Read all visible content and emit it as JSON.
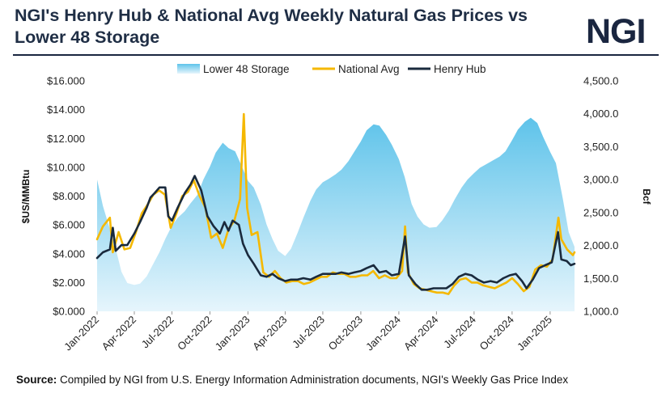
{
  "header": {
    "title": "NGI's Henry Hub & National Avg Weekly Natural Gas Prices vs Lower 48 Storage",
    "logo": "NGI"
  },
  "footer": {
    "source_label": "Source:",
    "source_text": " Compiled by NGI from U.S. Energy Information Administration documents, NGI's Weekly Gas Price Index"
  },
  "colors": {
    "storage_top": "#5ec3ea",
    "storage_bottom": "#e6f5fc",
    "national_avg": "#f5b800",
    "henry_hub": "#1a2a3d",
    "title": "#1f2e45"
  },
  "chart_data": {
    "type": "line",
    "legend": [
      "Lower 48 Storage",
      "National Avg",
      "Henry Hub"
    ],
    "legend_position": "top-center",
    "ylabel_left": "$US/MMBtu",
    "ylabel_right": "Bcf",
    "ylim_left": [
      0,
      16
    ],
    "ylim_right": [
      1000,
      4500
    ],
    "yticks_left": [
      "$0.000",
      "$2.000",
      "$4.000",
      "$6.000",
      "$8.000",
      "$10.000",
      "$12.000",
      "$14.000",
      "$16.000"
    ],
    "yticks_right": [
      "1,000.0",
      "1,500.0",
      "2,000.0",
      "2,500.0",
      "3,000.0",
      "3,500.0",
      "4,000.0",
      "4,500.0"
    ],
    "xlim": [
      "2022-01",
      "2025-03"
    ],
    "xticks": [
      "Jan-2022",
      "Apr-2022",
      "Jul-2022",
      "Oct-2022",
      "Jan-2023",
      "Apr-2023",
      "Jul-2023",
      "Oct-2023",
      "Jan-2024",
      "Apr-2024",
      "Jul-2024",
      "Oct-2024",
      "Jan-2025"
    ],
    "grid": false,
    "series": [
      {
        "name": "Lower 48 Storage",
        "type": "area",
        "axis": "right",
        "points": [
          [
            "2022-01-01",
            3000
          ],
          [
            "2022-01-15",
            2600
          ],
          [
            "2022-02-01",
            2250
          ],
          [
            "2022-02-15",
            1950
          ],
          [
            "2022-03-01",
            1600
          ],
          [
            "2022-03-15",
            1430
          ],
          [
            "2022-04-01",
            1400
          ],
          [
            "2022-04-15",
            1420
          ],
          [
            "2022-05-01",
            1530
          ],
          [
            "2022-05-15",
            1700
          ],
          [
            "2022-06-01",
            1900
          ],
          [
            "2022-06-15",
            2100
          ],
          [
            "2022-07-01",
            2300
          ],
          [
            "2022-07-15",
            2420
          ],
          [
            "2022-08-01",
            2520
          ],
          [
            "2022-08-15",
            2640
          ],
          [
            "2022-09-01",
            2770
          ],
          [
            "2022-09-15",
            3000
          ],
          [
            "2022-10-01",
            3200
          ],
          [
            "2022-10-15",
            3410
          ],
          [
            "2022-11-01",
            3560
          ],
          [
            "2022-11-15",
            3480
          ],
          [
            "2022-12-01",
            3430
          ],
          [
            "2022-12-15",
            3230
          ],
          [
            "2023-01-01",
            2980
          ],
          [
            "2023-01-15",
            2880
          ],
          [
            "2023-02-01",
            2620
          ],
          [
            "2023-02-15",
            2320
          ],
          [
            "2023-03-01",
            2100
          ],
          [
            "2023-03-15",
            1920
          ],
          [
            "2023-04-01",
            1840
          ],
          [
            "2023-04-15",
            1950
          ],
          [
            "2023-05-01",
            2190
          ],
          [
            "2023-05-15",
            2420
          ],
          [
            "2023-06-01",
            2680
          ],
          [
            "2023-06-15",
            2850
          ],
          [
            "2023-07-01",
            2960
          ],
          [
            "2023-07-15",
            3010
          ],
          [
            "2023-08-01",
            3080
          ],
          [
            "2023-08-15",
            3150
          ],
          [
            "2023-09-01",
            3280
          ],
          [
            "2023-09-15",
            3420
          ],
          [
            "2023-10-01",
            3580
          ],
          [
            "2023-10-15",
            3750
          ],
          [
            "2023-11-01",
            3840
          ],
          [
            "2023-11-15",
            3820
          ],
          [
            "2023-12-01",
            3680
          ],
          [
            "2023-12-15",
            3530
          ],
          [
            "2024-01-01",
            3310
          ],
          [
            "2024-01-15",
            3040
          ],
          [
            "2024-02-01",
            2630
          ],
          [
            "2024-02-15",
            2440
          ],
          [
            "2024-03-01",
            2320
          ],
          [
            "2024-03-15",
            2270
          ],
          [
            "2024-04-01",
            2280
          ],
          [
            "2024-04-15",
            2380
          ],
          [
            "2024-05-01",
            2530
          ],
          [
            "2024-05-15",
            2700
          ],
          [
            "2024-06-01",
            2880
          ],
          [
            "2024-06-15",
            3000
          ],
          [
            "2024-07-01",
            3100
          ],
          [
            "2024-07-15",
            3180
          ],
          [
            "2024-08-01",
            3240
          ],
          [
            "2024-08-15",
            3290
          ],
          [
            "2024-09-01",
            3350
          ],
          [
            "2024-09-15",
            3430
          ],
          [
            "2024-10-01",
            3600
          ],
          [
            "2024-10-15",
            3760
          ],
          [
            "2024-11-01",
            3880
          ],
          [
            "2024-11-15",
            3940
          ],
          [
            "2024-12-01",
            3860
          ],
          [
            "2024-12-15",
            3650
          ],
          [
            "2025-01-01",
            3420
          ],
          [
            "2025-01-15",
            3250
          ],
          [
            "2025-02-01",
            2700
          ],
          [
            "2025-02-15",
            2200
          ],
          [
            "2025-03-01",
            1980
          ]
        ]
      },
      {
        "name": "National Avg",
        "type": "line",
        "axis": "left",
        "points": [
          [
            "2022-01-01",
            5.0
          ],
          [
            "2022-01-15",
            5.9
          ],
          [
            "2022-02-01",
            6.5
          ],
          [
            "2022-02-08",
            4.1
          ],
          [
            "2022-02-22",
            5.5
          ],
          [
            "2022-03-08",
            4.3
          ],
          [
            "2022-03-22",
            4.4
          ],
          [
            "2022-04-05",
            5.5
          ],
          [
            "2022-04-19",
            6.8
          ],
          [
            "2022-05-03",
            7.4
          ],
          [
            "2022-05-17",
            8.1
          ],
          [
            "2022-05-31",
            8.4
          ],
          [
            "2022-06-14",
            8.1
          ],
          [
            "2022-06-28",
            5.8
          ],
          [
            "2022-07-12",
            6.8
          ],
          [
            "2022-07-26",
            8.0
          ],
          [
            "2022-08-09",
            8.3
          ],
          [
            "2022-08-23",
            9.1
          ],
          [
            "2022-09-06",
            8.0
          ],
          [
            "2022-09-20",
            7.2
          ],
          [
            "2022-10-04",
            5.1
          ],
          [
            "2022-10-18",
            5.4
          ],
          [
            "2022-11-01",
            4.4
          ],
          [
            "2022-11-15",
            5.7
          ],
          [
            "2022-11-29",
            6.3
          ],
          [
            "2022-12-13",
            7.8
          ],
          [
            "2022-12-22",
            13.7
          ],
          [
            "2022-12-30",
            7.2
          ],
          [
            "2023-01-10",
            5.3
          ],
          [
            "2023-01-24",
            5.5
          ],
          [
            "2023-02-07",
            2.7
          ],
          [
            "2023-02-21",
            2.4
          ],
          [
            "2023-03-07",
            2.8
          ],
          [
            "2023-03-21",
            2.3
          ],
          [
            "2023-04-04",
            2.0
          ],
          [
            "2023-04-18",
            2.1
          ],
          [
            "2023-05-02",
            2.1
          ],
          [
            "2023-05-16",
            1.9
          ],
          [
            "2023-05-30",
            2.0
          ],
          [
            "2023-06-13",
            2.2
          ],
          [
            "2023-06-27",
            2.4
          ],
          [
            "2023-07-11",
            2.4
          ],
          [
            "2023-07-25",
            2.7
          ],
          [
            "2023-08-08",
            2.6
          ],
          [
            "2023-08-22",
            2.6
          ],
          [
            "2023-09-05",
            2.4
          ],
          [
            "2023-09-19",
            2.4
          ],
          [
            "2023-10-03",
            2.5
          ],
          [
            "2023-10-17",
            2.5
          ],
          [
            "2023-10-31",
            2.8
          ],
          [
            "2023-11-14",
            2.3
          ],
          [
            "2023-11-28",
            2.5
          ],
          [
            "2023-12-12",
            2.3
          ],
          [
            "2023-12-26",
            2.3
          ],
          [
            "2024-01-09",
            2.8
          ],
          [
            "2024-01-16",
            5.9
          ],
          [
            "2024-01-23",
            2.7
          ],
          [
            "2024-02-06",
            1.9
          ],
          [
            "2024-02-20",
            1.6
          ],
          [
            "2024-03-05",
            1.5
          ],
          [
            "2024-03-19",
            1.4
          ],
          [
            "2024-04-02",
            1.3
          ],
          [
            "2024-04-16",
            1.3
          ],
          [
            "2024-04-30",
            1.2
          ],
          [
            "2024-05-14",
            1.8
          ],
          [
            "2024-05-28",
            2.2
          ],
          [
            "2024-06-11",
            2.3
          ],
          [
            "2024-06-25",
            2.0
          ],
          [
            "2024-07-09",
            2.0
          ],
          [
            "2024-07-23",
            1.8
          ],
          [
            "2024-08-06",
            1.7
          ],
          [
            "2024-08-20",
            1.6
          ],
          [
            "2024-09-03",
            1.8
          ],
          [
            "2024-09-17",
            2.0
          ],
          [
            "2024-10-01",
            2.3
          ],
          [
            "2024-10-15",
            1.9
          ],
          [
            "2024-10-29",
            1.4
          ],
          [
            "2024-11-12",
            1.7
          ],
          [
            "2024-11-26",
            2.9
          ],
          [
            "2024-12-10",
            3.2
          ],
          [
            "2024-12-24",
            3.1
          ],
          [
            "2025-01-07",
            3.6
          ],
          [
            "2025-01-21",
            6.5
          ],
          [
            "2025-01-28",
            5.0
          ],
          [
            "2025-02-11",
            4.3
          ],
          [
            "2025-02-25",
            3.9
          ],
          [
            "2025-03-01",
            4.1
          ]
        ]
      },
      {
        "name": "Henry Hub",
        "type": "line",
        "axis": "left",
        "points": [
          [
            "2022-01-01",
            3.7
          ],
          [
            "2022-01-15",
            4.1
          ],
          [
            "2022-02-01",
            4.3
          ],
          [
            "2022-02-08",
            5.8
          ],
          [
            "2022-02-15",
            4.2
          ],
          [
            "2022-03-01",
            4.6
          ],
          [
            "2022-03-15",
            4.6
          ],
          [
            "2022-04-01",
            5.4
          ],
          [
            "2022-04-15",
            6.2
          ],
          [
            "2022-05-01",
            7.2
          ],
          [
            "2022-05-10",
            7.9
          ],
          [
            "2022-05-20",
            8.2
          ],
          [
            "2022-06-01",
            8.6
          ],
          [
            "2022-06-15",
            8.6
          ],
          [
            "2022-06-22",
            6.6
          ],
          [
            "2022-07-01",
            6.3
          ],
          [
            "2022-07-15",
            7.2
          ],
          [
            "2022-08-01",
            8.2
          ],
          [
            "2022-08-15",
            8.8
          ],
          [
            "2022-08-25",
            9.4
          ],
          [
            "2022-09-10",
            8.4
          ],
          [
            "2022-09-25",
            6.6
          ],
          [
            "2022-10-10",
            5.9
          ],
          [
            "2022-10-25",
            5.4
          ],
          [
            "2022-11-05",
            6.2
          ],
          [
            "2022-11-15",
            5.6
          ],
          [
            "2022-11-25",
            6.3
          ],
          [
            "2022-12-10",
            6.0
          ],
          [
            "2022-12-20",
            4.7
          ],
          [
            "2023-01-01",
            3.9
          ],
          [
            "2023-01-15",
            3.3
          ],
          [
            "2023-02-01",
            2.5
          ],
          [
            "2023-02-15",
            2.4
          ],
          [
            "2023-03-01",
            2.6
          ],
          [
            "2023-03-15",
            2.3
          ],
          [
            "2023-04-01",
            2.1
          ],
          [
            "2023-04-15",
            2.2
          ],
          [
            "2023-05-01",
            2.2
          ],
          [
            "2023-05-15",
            2.3
          ],
          [
            "2023-06-01",
            2.2
          ],
          [
            "2023-06-15",
            2.4
          ],
          [
            "2023-07-01",
            2.6
          ],
          [
            "2023-07-15",
            2.6
          ],
          [
            "2023-08-01",
            2.6
          ],
          [
            "2023-08-15",
            2.7
          ],
          [
            "2023-09-01",
            2.6
          ],
          [
            "2023-09-15",
            2.7
          ],
          [
            "2023-10-01",
            2.8
          ],
          [
            "2023-10-15",
            3.0
          ],
          [
            "2023-11-01",
            3.2
          ],
          [
            "2023-11-15",
            2.7
          ],
          [
            "2023-12-01",
            2.8
          ],
          [
            "2023-12-15",
            2.5
          ],
          [
            "2024-01-01",
            2.6
          ],
          [
            "2024-01-16",
            5.2
          ],
          [
            "2024-01-25",
            2.5
          ],
          [
            "2024-02-10",
            1.9
          ],
          [
            "2024-02-25",
            1.5
          ],
          [
            "2024-03-10",
            1.5
          ],
          [
            "2024-03-25",
            1.6
          ],
          [
            "2024-04-10",
            1.6
          ],
          [
            "2024-04-25",
            1.6
          ],
          [
            "2024-05-10",
            1.9
          ],
          [
            "2024-05-25",
            2.4
          ],
          [
            "2024-06-10",
            2.6
          ],
          [
            "2024-06-25",
            2.5
          ],
          [
            "2024-07-10",
            2.2
          ],
          [
            "2024-07-25",
            2.0
          ],
          [
            "2024-08-10",
            2.1
          ],
          [
            "2024-08-25",
            2.0
          ],
          [
            "2024-09-10",
            2.3
          ],
          [
            "2024-09-25",
            2.5
          ],
          [
            "2024-10-10",
            2.6
          ],
          [
            "2024-10-25",
            2.1
          ],
          [
            "2024-11-05",
            1.6
          ],
          [
            "2024-11-20",
            2.2
          ],
          [
            "2024-12-05",
            3.0
          ],
          [
            "2024-12-20",
            3.2
          ],
          [
            "2025-01-05",
            3.4
          ],
          [
            "2025-01-20",
            5.5
          ],
          [
            "2025-01-28",
            3.6
          ],
          [
            "2025-02-10",
            3.5
          ],
          [
            "2025-02-20",
            3.2
          ],
          [
            "2025-03-01",
            3.3
          ]
        ]
      }
    ]
  }
}
